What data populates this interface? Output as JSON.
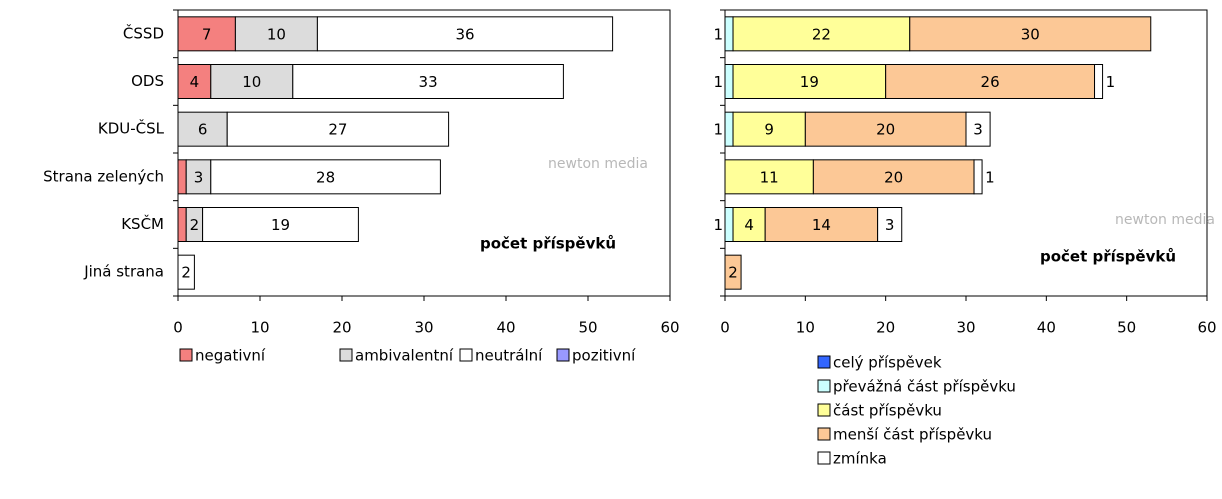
{
  "chart_data": [
    {
      "type": "bar",
      "orientation": "horizontal",
      "stacked": true,
      "categories": [
        "ČSSD",
        "ODS",
        "KDU-ČSL",
        "Strana zelených",
        "KSČM",
        "Jiná strana"
      ],
      "series": [
        {
          "name": "negativní",
          "color": "#f4807f",
          "values": [
            7,
            4,
            null,
            1,
            1,
            null
          ]
        },
        {
          "name": "ambivalentní",
          "color": "#dcdcdc",
          "values": [
            10,
            10,
            6,
            3,
            2,
            null
          ]
        },
        {
          "name": "neutrální",
          "color": "#ffffff",
          "values": [
            36,
            33,
            27,
            28,
            19,
            2
          ]
        },
        {
          "name": "pozitivní",
          "color": "#9999ff",
          "values": [
            null,
            null,
            null,
            null,
            null,
            null
          ]
        }
      ],
      "xlabel": "počet příspěvků",
      "watermark": "newton media",
      "xlim": [
        0,
        60
      ],
      "xticks": [
        0,
        10,
        20,
        30,
        40,
        50,
        60
      ],
      "legend": "horizontal"
    },
    {
      "type": "bar",
      "orientation": "horizontal",
      "stacked": true,
      "series": [
        {
          "name": "celý příspěvek",
          "color": "#3366ff",
          "values": [
            null,
            null,
            null,
            null,
            null,
            null
          ]
        },
        {
          "name": "převážná část příspěvku",
          "color": "#ccffff",
          "values": [
            1,
            1,
            1,
            null,
            1,
            null
          ]
        },
        {
          "name": "část příspěvku",
          "color": "#ffff99",
          "values": [
            22,
            19,
            9,
            11,
            4,
            null
          ]
        },
        {
          "name": "menší část příspěvku",
          "color": "#fcc896",
          "values": [
            30,
            26,
            20,
            20,
            14,
            2
          ]
        },
        {
          "name": "zmínka",
          "color": "#ffffff",
          "values": [
            null,
            1,
            3,
            1,
            3,
            null
          ]
        }
      ],
      "xlabel": "počet příspěvků",
      "watermark": "newton media",
      "xlim": [
        0,
        60
      ],
      "xticks": [
        0,
        10,
        20,
        30,
        40,
        50,
        60
      ],
      "legend": "vertical"
    }
  ]
}
